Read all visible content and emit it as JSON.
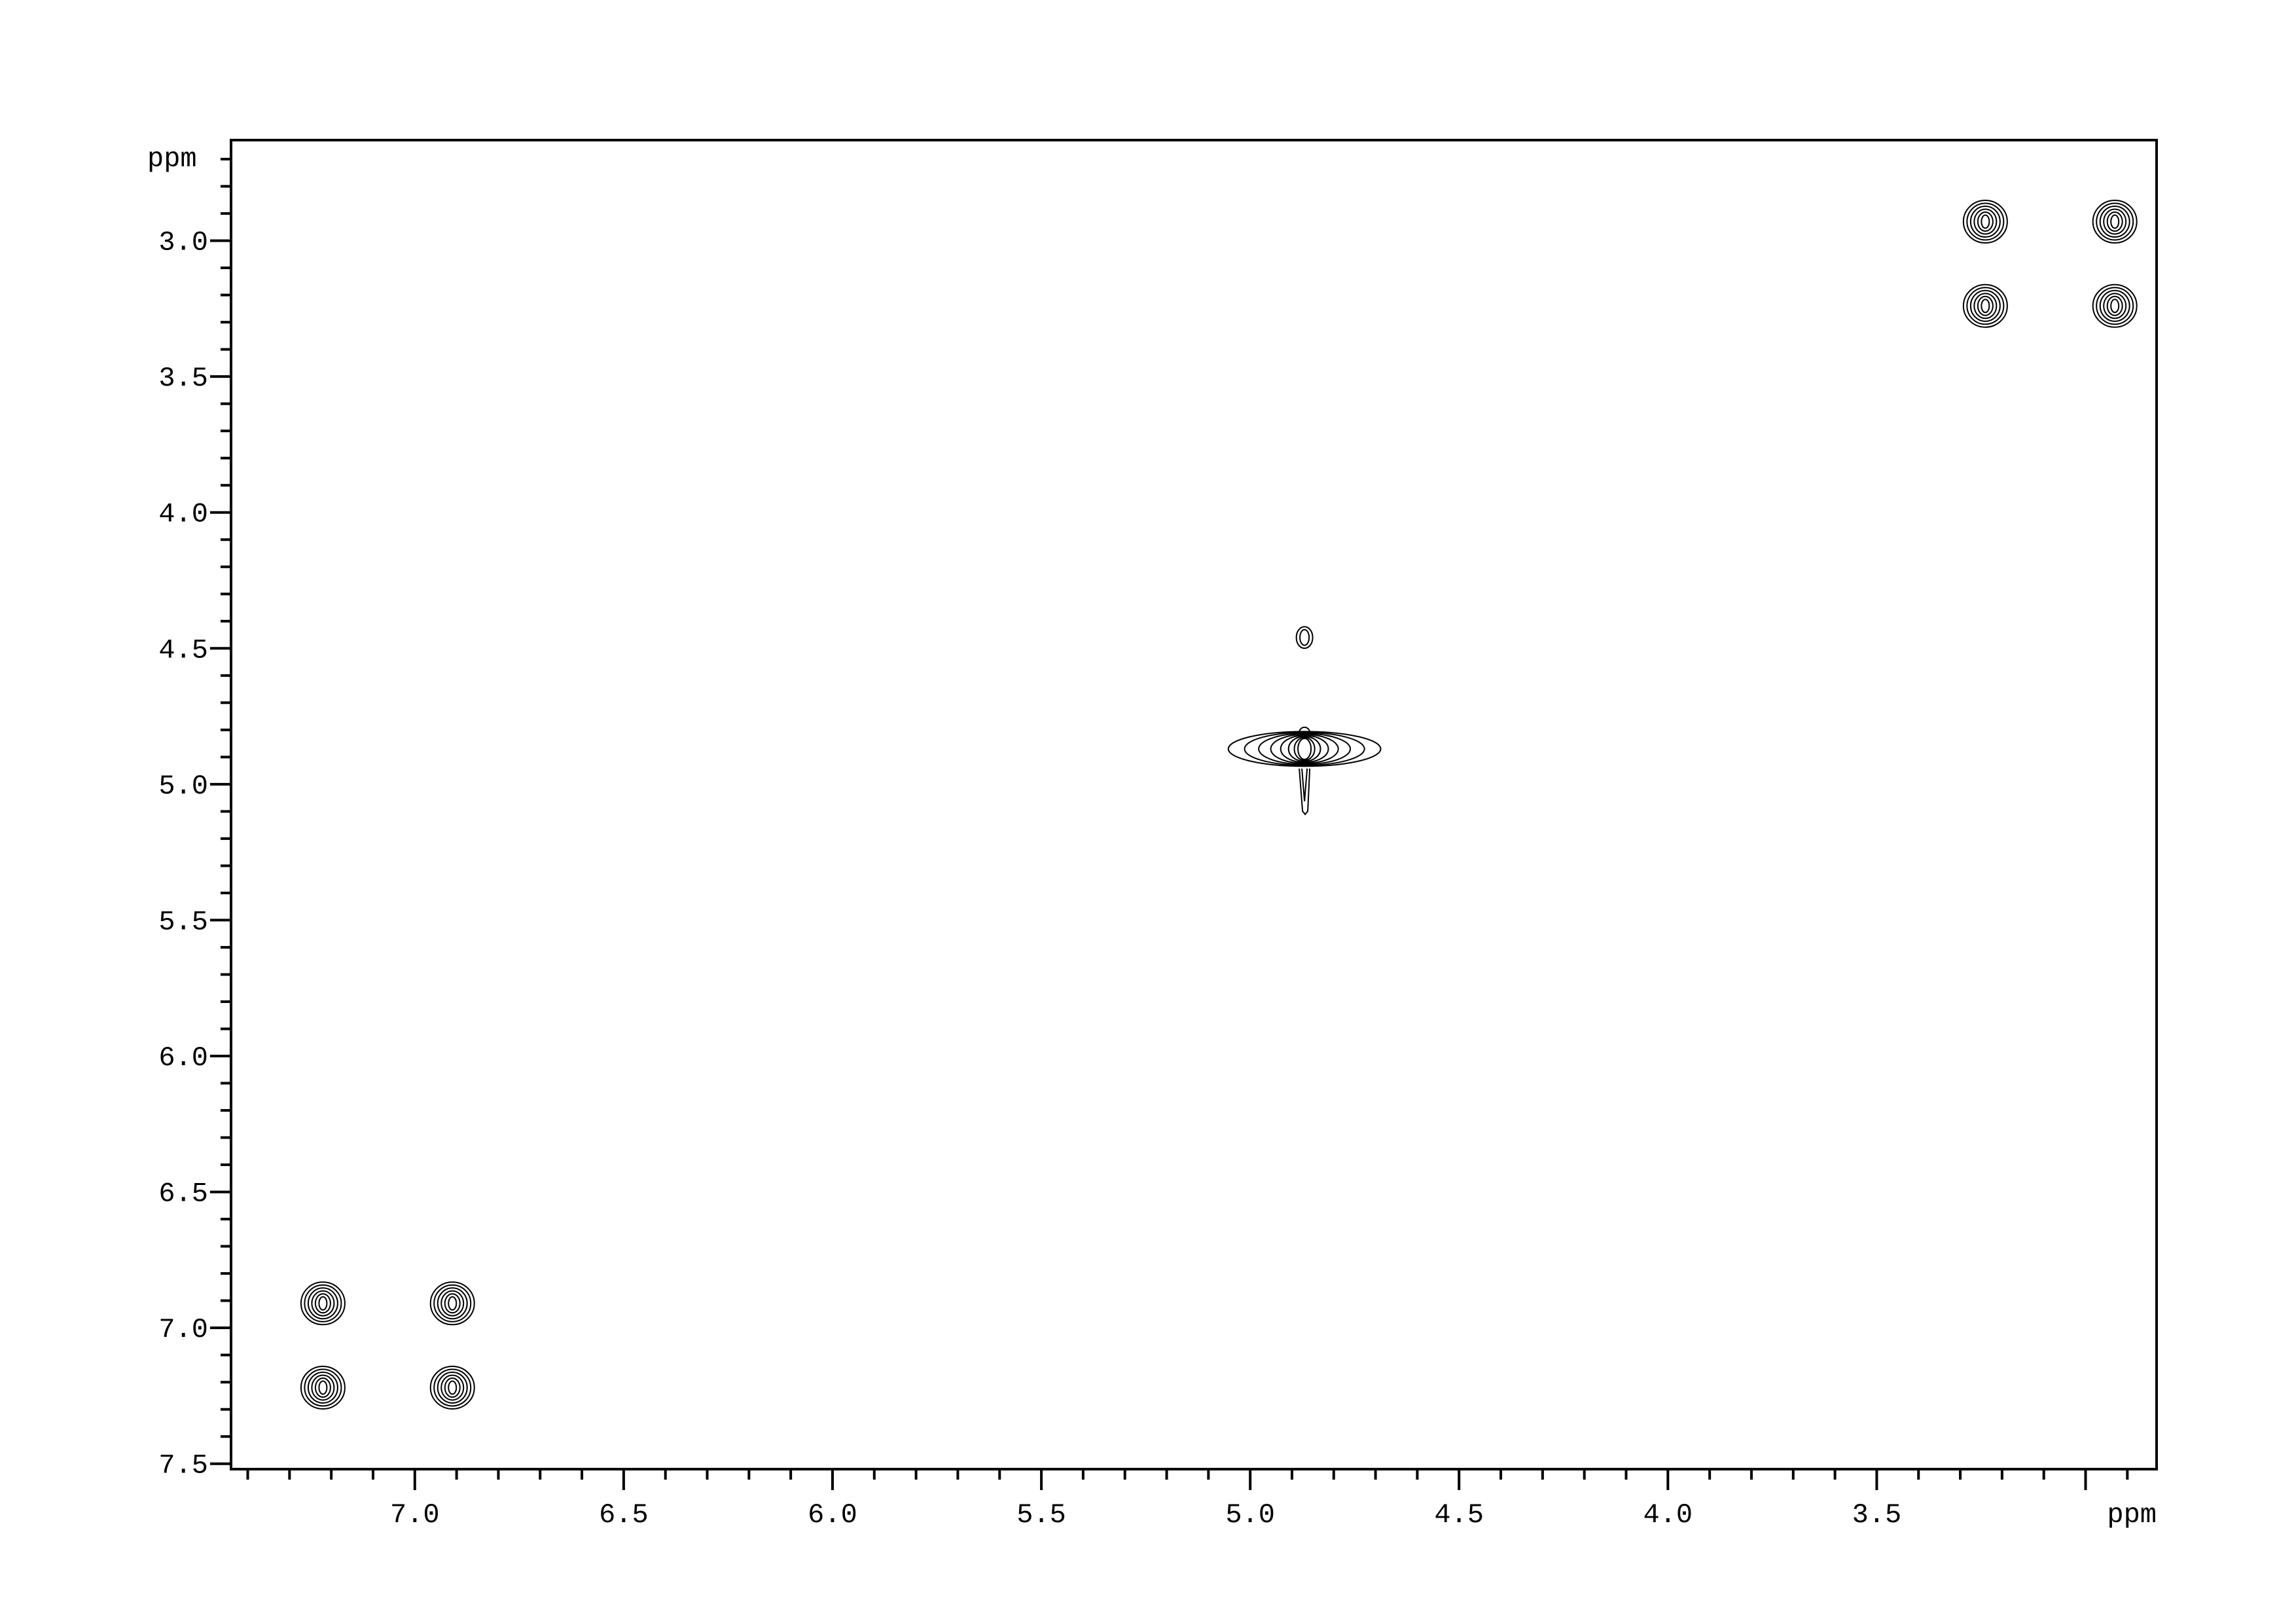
{
  "chart_data": {
    "type": "contour",
    "xlabel": "ppm",
    "ylabel": "ppm",
    "xlim": [
      7.44,
      2.83
    ],
    "ylim": [
      2.63,
      7.52
    ],
    "x_reversed": true,
    "y_down_increasing": true,
    "x_major_ticks": [
      7.0,
      6.5,
      6.0,
      5.5,
      5.0,
      4.5,
      4.0,
      3.5
    ],
    "x_tick_labels": [
      "7.0",
      "6.5",
      "6.0",
      "5.5",
      "5.0",
      "4.5",
      "4.0",
      "3.5"
    ],
    "y_major_ticks": [
      3.0,
      3.5,
      4.0,
      4.5,
      5.0,
      5.5,
      6.0,
      6.5,
      7.0,
      7.5
    ],
    "y_tick_labels": [
      "3.0",
      "3.5",
      "4.0",
      "4.5",
      "5.0",
      "5.5",
      "6.0",
      "6.5",
      "7.0",
      "7.5"
    ],
    "minor_tick_step": 0.1,
    "grid": false,
    "contour_color": "#000000",
    "peaks": [
      {
        "x": 2.93,
        "y": 2.93,
        "kind": "diagonal"
      },
      {
        "x": 3.24,
        "y": 2.93,
        "kind": "cross"
      },
      {
        "x": 3.24,
        "y": 3.24,
        "kind": "diagonal"
      },
      {
        "x": 2.93,
        "y": 3.24,
        "kind": "cross"
      },
      {
        "x": 4.87,
        "y": 4.87,
        "kind": "diagonal-strong"
      },
      {
        "x": 4.87,
        "y": 4.46,
        "kind": "weak"
      },
      {
        "x": 7.22,
        "y": 6.91,
        "kind": "cross"
      },
      {
        "x": 6.91,
        "y": 6.91,
        "kind": "diagonal"
      },
      {
        "x": 7.22,
        "y": 7.22,
        "kind": "diagonal"
      },
      {
        "x": 6.91,
        "y": 7.22,
        "kind": "cross"
      }
    ]
  }
}
